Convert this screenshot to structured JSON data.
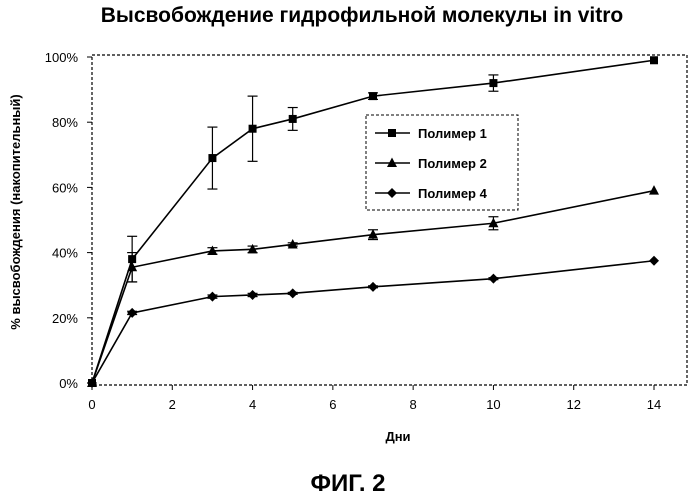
{
  "figure_caption": "ФИГ. 2",
  "chart_data": {
    "type": "line",
    "title": "Высвобождение гидрофильной молекулы in vitro",
    "xlabel": "Дни",
    "ylabel": "% высвобождения (накопительный)",
    "xlim": [
      0,
      14
    ],
    "ylim": [
      0,
      100
    ],
    "x_ticks": [
      0,
      2,
      4,
      6,
      8,
      10,
      12,
      14
    ],
    "y_ticks": [
      0,
      20,
      40,
      60,
      80,
      100
    ],
    "x_tick_labels": [
      "0",
      "2",
      "4",
      "6",
      "8",
      "10",
      "12",
      "14"
    ],
    "y_tick_labels": [
      "0%",
      "20%",
      "40%",
      "60%",
      "80%",
      "100%"
    ],
    "grid": false,
    "legend_position": "center-right",
    "series": [
      {
        "name": "Полимер 1",
        "marker": "square",
        "color": "#000000",
        "x": [
          0,
          1,
          3,
          4,
          5,
          7,
          10,
          14
        ],
        "y": [
          0,
          38,
          69,
          78,
          81,
          88,
          92,
          99
        ],
        "error": [
          0,
          7,
          9.5,
          10,
          3.5,
          1,
          2.5,
          0
        ]
      },
      {
        "name": "Полимер 2",
        "marker": "triangle",
        "color": "#000000",
        "x": [
          0,
          1,
          3,
          4,
          5,
          7,
          10,
          14
        ],
        "y": [
          0,
          35.5,
          40.5,
          41,
          42.5,
          45.5,
          49,
          59
        ],
        "error": [
          0,
          4.5,
          1,
          1,
          0.5,
          1.5,
          2,
          0
        ]
      },
      {
        "name": "Полимер 4",
        "marker": "diamond",
        "color": "#000000",
        "x": [
          0,
          1,
          3,
          4,
          5,
          7,
          10,
          14
        ],
        "y": [
          0,
          21.5,
          26.5,
          27,
          27.5,
          29.5,
          32,
          37.5
        ],
        "error": [
          0,
          0.5,
          0.5,
          0.5,
          0.3,
          0.3,
          0.3,
          0
        ]
      }
    ]
  }
}
